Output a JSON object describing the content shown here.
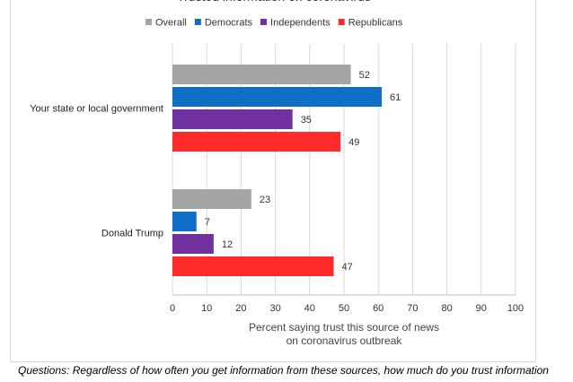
{
  "chart_data": {
    "type": "bar",
    "orientation": "horizontal",
    "title": "Trusted information on coronavirus",
    "categories": [
      "Your state or local government",
      "Donald Trump"
    ],
    "series": [
      {
        "name": "Overall",
        "color": "#a5a5a5",
        "values": [
          52,
          23
        ]
      },
      {
        "name": "Democrats",
        "color": "#0f6fc6",
        "values": [
          61,
          7
        ]
      },
      {
        "name": "Independents",
        "color": "#7030a0",
        "values": [
          35,
          12
        ]
      },
      {
        "name": "Republicans",
        "color": "#ff2a2a",
        "values": [
          49,
          47
        ]
      }
    ],
    "xlabel_lines": [
      "Percent saying trust this source of news",
      "on coronavirus outbreak"
    ],
    "xlim": [
      0,
      100
    ],
    "xticks": [
      0,
      10,
      20,
      30,
      40,
      50,
      60,
      70,
      80,
      90,
      100
    ],
    "grid": true,
    "legend_position": "top"
  },
  "footnote": "Questions: Regardless of how often you get information from these sources, how much do you trust information"
}
